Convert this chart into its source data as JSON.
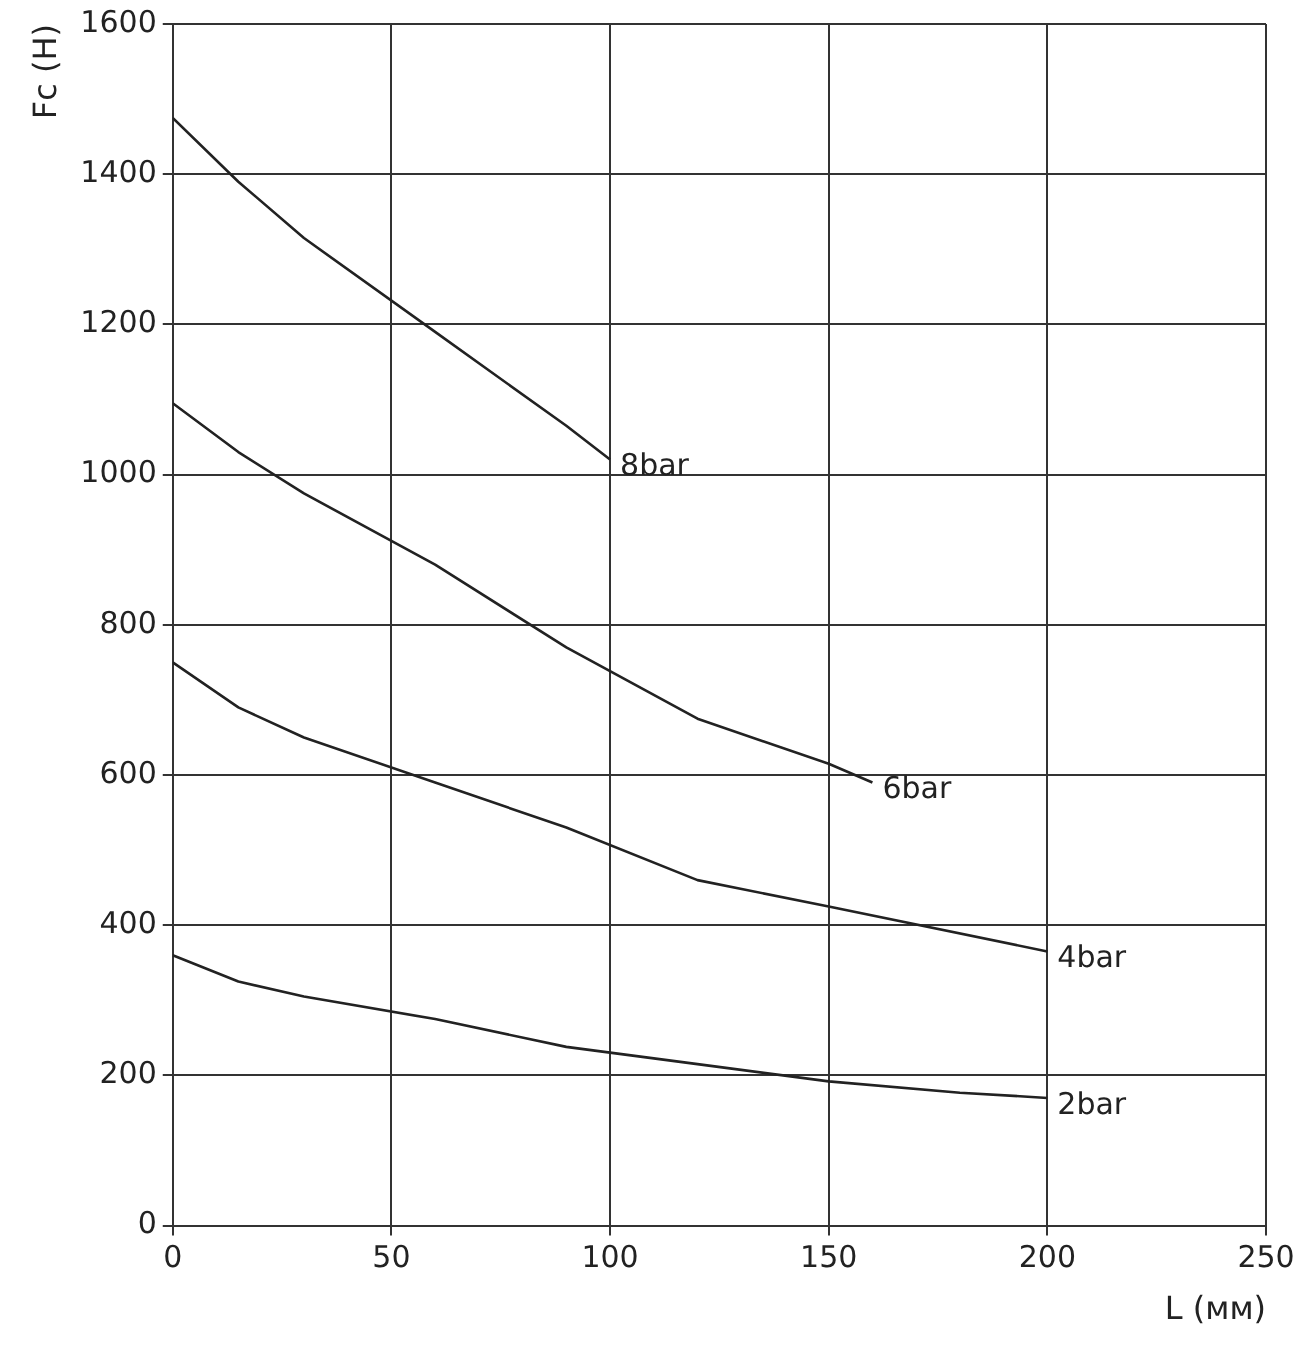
{
  "chart_data": {
    "type": "line",
    "xlabel": "L (мм)",
    "ylabel": "Fc (Н)",
    "xlim": [
      0,
      250
    ],
    "xticks": [
      0,
      50,
      100,
      150,
      200,
      250
    ],
    "ylim": [
      0,
      1600
    ],
    "yticks": [
      0,
      200,
      400,
      600,
      800,
      1000,
      1200,
      1400,
      1600
    ],
    "grid": true,
    "legend": false,
    "marker": "none",
    "line_style": "solid",
    "series": [
      {
        "name": "8bar",
        "color": "#222222",
        "x": [
          0,
          15,
          30,
          60,
          90,
          100
        ],
        "values": [
          1475,
          1390,
          1315,
          1190,
          1065,
          1020
        ]
      },
      {
        "name": "6bar",
        "color": "#222222",
        "x": [
          0,
          15,
          30,
          60,
          90,
          120,
          150,
          160
        ],
        "values": [
          1095,
          1030,
          975,
          880,
          770,
          675,
          615,
          590
        ]
      },
      {
        "name": "4bar",
        "color": "#222222",
        "x": [
          0,
          15,
          30,
          60,
          90,
          120,
          150,
          200
        ],
        "values": [
          750,
          690,
          650,
          590,
          530,
          460,
          425,
          365
        ]
      },
      {
        "name": "2bar",
        "color": "#222222",
        "x": [
          0,
          15,
          30,
          60,
          90,
          120,
          150,
          180,
          200
        ],
        "values": [
          360,
          325,
          305,
          275,
          238,
          215,
          192,
          177,
          170
        ]
      }
    ]
  }
}
